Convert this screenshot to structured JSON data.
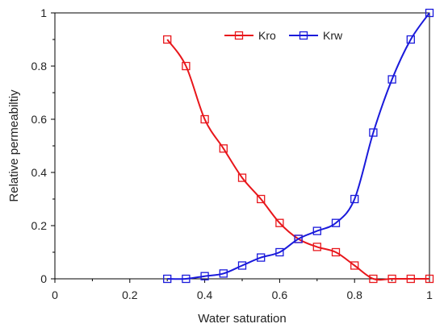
{
  "chart_data": {
    "type": "line",
    "title": "",
    "xlabel": "Water saturation",
    "ylabel": "Relative permeabiltiy",
    "xlim": [
      0,
      1
    ],
    "ylim": [
      0,
      1
    ],
    "xticks": [
      0,
      0.2,
      0.4,
      0.6,
      0.8,
      1
    ],
    "yticks": [
      0,
      0.2,
      0.4,
      0.6,
      0.8,
      1
    ],
    "xtick_labels": [
      "0",
      "0.2",
      "0.4",
      "0.6",
      "0.8",
      "1"
    ],
    "ytick_labels": [
      "0",
      "0.2",
      "0.4",
      "0.6",
      "0.8",
      "1"
    ],
    "grid": false,
    "legend_position": "top-center",
    "x": [
      0.3,
      0.35,
      0.4,
      0.45,
      0.5,
      0.55,
      0.6,
      0.65,
      0.7,
      0.75,
      0.8,
      0.85,
      0.9,
      0.95,
      1.0
    ],
    "series": [
      {
        "name": "Kro",
        "color": "#e8161b",
        "marker": "open-square",
        "values": [
          0.9,
          0.8,
          0.6,
          0.49,
          0.38,
          0.3,
          0.21,
          0.15,
          0.12,
          0.1,
          0.05,
          0.0,
          0.0,
          0.0,
          0.0
        ]
      },
      {
        "name": "Krw",
        "color": "#1a1adb",
        "marker": "open-square",
        "values": [
          0.0,
          0.0,
          0.01,
          0.02,
          0.05,
          0.08,
          0.1,
          0.15,
          0.18,
          0.21,
          0.3,
          0.55,
          0.75,
          0.9,
          1.0
        ]
      }
    ]
  }
}
